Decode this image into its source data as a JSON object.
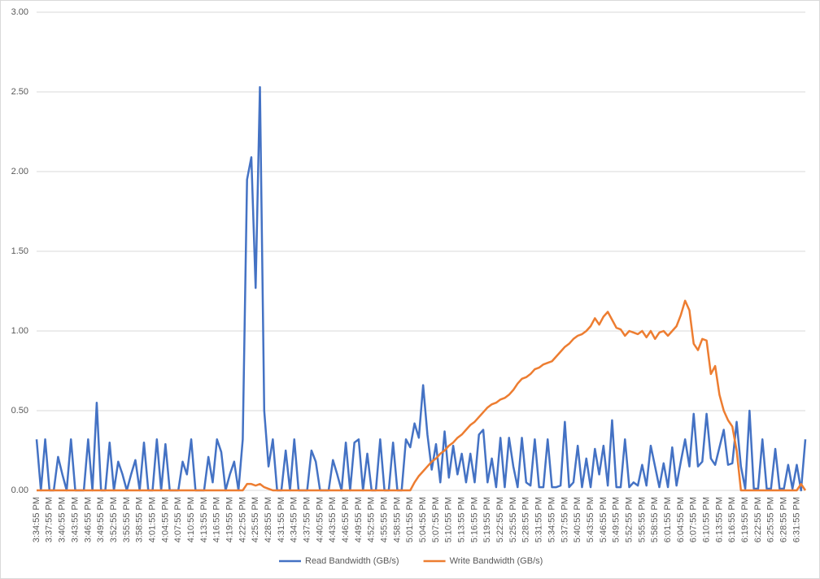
{
  "chart_data": {
    "type": "line",
    "categories": [
      "3:34:55 PM",
      null,
      null,
      "3:37:55 PM",
      null,
      null,
      "3:40:55 PM",
      null,
      null,
      "3:43:55 PM",
      null,
      null,
      "3:46:55 PM",
      null,
      null,
      "3:49:55 PM",
      null,
      null,
      "3:52:55 PM",
      null,
      null,
      "3:55:55 PM",
      null,
      null,
      "3:58:55 PM",
      null,
      null,
      "4:01:55 PM",
      null,
      null,
      "4:04:55 PM",
      null,
      null,
      "4:07:55 PM",
      null,
      null,
      "4:10:55 PM",
      null,
      null,
      "4:13:55 PM",
      null,
      null,
      "4:16:55 PM",
      null,
      null,
      "4:19:55 PM",
      null,
      null,
      "4:22:55 PM",
      null,
      null,
      "4:25:55 PM",
      null,
      null,
      "4:28:55 PM",
      null,
      null,
      "4:31:55 PM",
      null,
      null,
      "4:34:55 PM",
      null,
      null,
      "4:37:55 PM",
      null,
      null,
      "4:40:55 PM",
      null,
      null,
      "4:43:55 PM",
      null,
      null,
      "4:46:55 PM",
      null,
      null,
      "4:49:55 PM",
      null,
      null,
      "4:52:55 PM",
      null,
      null,
      "4:55:55 PM",
      null,
      null,
      "4:58:55 PM",
      null,
      null,
      "5:01:55 PM",
      null,
      null,
      "5:04:55 PM",
      null,
      null,
      "5:07:55 PM",
      null,
      null,
      "5:10:55 PM",
      null,
      null,
      "5:13:55 PM",
      null,
      null,
      "5:16:55 PM",
      null,
      null,
      "5:19:55 PM",
      null,
      null,
      "5:22:55 PM",
      null,
      null,
      "5:25:55 PM",
      null,
      null,
      "5:28:55 PM",
      null,
      null,
      "5:31:55 PM",
      null,
      null,
      "5:34:55 PM",
      null,
      null,
      "5:37:55 PM",
      null,
      null,
      "5:40:55 PM",
      null,
      null,
      "5:43:55 PM",
      null,
      null,
      "5:46:55 PM",
      null,
      null,
      "5:49:55 PM",
      null,
      null,
      "5:52:55 PM",
      null,
      null,
      "5:55:55 PM",
      null,
      null,
      "5:58:55 PM",
      null,
      null,
      "6:01:55 PM",
      null,
      null,
      "6:04:55 PM",
      null,
      null,
      "6:07:55 PM",
      null,
      null,
      "6:10:55 PM",
      null,
      null,
      "6:13:55 PM",
      null,
      null,
      "6:16:55 PM",
      null,
      null,
      "6:19:55 PM",
      null,
      null,
      "6:22:55 PM",
      null,
      null,
      "6:25:55 PM",
      null,
      null,
      "6:28:55 PM",
      null,
      null,
      "6:31:55 PM",
      null,
      null
    ],
    "series": [
      {
        "name": "Read Bandwidth (GB/s)",
        "color": "#4472c4",
        "values": [
          0.32,
          0,
          0.32,
          0,
          0,
          0.21,
          0.1,
          0,
          0.32,
          0,
          0,
          0,
          0.32,
          0,
          0.55,
          0,
          0,
          0.3,
          0,
          0.18,
          0.1,
          0,
          0.1,
          0.19,
          0,
          0.3,
          0,
          0,
          0.32,
          0,
          0.29,
          0,
          0,
          0,
          0.18,
          0.1,
          0.32,
          0,
          0,
          0,
          0.21,
          0.05,
          0.32,
          0.24,
          0,
          0.1,
          0.18,
          0,
          0.32,
          1.95,
          2.09,
          1.27,
          2.53,
          0.5,
          0.15,
          0.32,
          0,
          0,
          0.25,
          0,
          0.32,
          0,
          0,
          0,
          0.25,
          0.18,
          0,
          0,
          0,
          0.19,
          0.1,
          0,
          0.3,
          0,
          0.3,
          0.32,
          0,
          0.23,
          0,
          0,
          0.32,
          0,
          0,
          0.3,
          0,
          0,
          0.32,
          0.27,
          0.42,
          0.33,
          0.66,
          0.35,
          0.13,
          0.29,
          0.05,
          0.37,
          0.08,
          0.28,
          0.1,
          0.23,
          0.05,
          0.23,
          0.05,
          0.35,
          0.38,
          0.05,
          0.2,
          0.02,
          0.33,
          0.02,
          0.33,
          0.15,
          0.02,
          0.33,
          0.05,
          0.03,
          0.32,
          0.02,
          0.02,
          0.32,
          0.02,
          0.02,
          0.03,
          0.43,
          0.02,
          0.05,
          0.28,
          0.02,
          0.2,
          0.02,
          0.26,
          0.1,
          0.28,
          0.03,
          0.44,
          0.02,
          0.02,
          0.32,
          0.02,
          0.05,
          0.03,
          0.16,
          0.03,
          0.28,
          0.15,
          0.02,
          0.17,
          0.02,
          0.27,
          0.03,
          0.18,
          0.32,
          0.15,
          0.48,
          0.15,
          0.18,
          0.48,
          0.2,
          0.16,
          0.27,
          0.38,
          0.16,
          0.17,
          0.43,
          0.15,
          0.01,
          0.5,
          0.01,
          0.01,
          0.32,
          0.01,
          0.01,
          0.26,
          0.01,
          0.01,
          0.16,
          0.01,
          0.16,
          0,
          0.32
        ]
      },
      {
        "name": "Write Bandwidth (GB/s)",
        "color": "#ed7d31",
        "values": [
          0,
          0,
          0,
          0,
          0,
          0,
          0,
          0,
          0,
          0,
          0,
          0,
          0,
          0,
          0,
          0,
          0,
          0,
          0,
          0,
          0,
          0,
          0,
          0,
          0,
          0,
          0,
          0,
          0,
          0,
          0,
          0,
          0,
          0,
          0,
          0,
          0,
          0,
          0,
          0,
          0,
          0,
          0,
          0,
          0,
          0,
          0,
          0,
          0,
          0.04,
          0.04,
          0.03,
          0.04,
          0.02,
          0.01,
          0,
          0,
          0,
          0,
          0,
          0,
          0,
          0,
          0,
          0,
          0,
          0,
          0,
          0,
          0,
          0,
          0,
          0,
          0,
          0,
          0,
          0,
          0,
          0,
          0,
          0,
          0,
          0,
          0,
          0,
          0,
          0,
          0,
          0.05,
          0.09,
          0.12,
          0.15,
          0.18,
          0.2,
          0.23,
          0.25,
          0.28,
          0.3,
          0.33,
          0.35,
          0.38,
          0.41,
          0.43,
          0.46,
          0.49,
          0.52,
          0.54,
          0.55,
          0.57,
          0.58,
          0.6,
          0.63,
          0.67,
          0.7,
          0.71,
          0.73,
          0.76,
          0.77,
          0.79,
          0.8,
          0.81,
          0.84,
          0.87,
          0.9,
          0.92,
          0.95,
          0.97,
          0.98,
          1.0,
          1.03,
          1.08,
          1.04,
          1.09,
          1.12,
          1.07,
          1.02,
          1.01,
          0.97,
          1.0,
          0.99,
          0.98,
          1.0,
          0.96,
          1.0,
          0.95,
          0.99,
          1.0,
          0.97,
          1.0,
          1.03,
          1.1,
          1.19,
          1.13,
          0.92,
          0.88,
          0.95,
          0.94,
          0.73,
          0.78,
          0.6,
          0.5,
          0.44,
          0.4,
          0.25,
          0,
          0,
          0,
          0,
          0,
          0,
          0,
          0,
          0,
          0,
          0,
          0,
          0,
          0,
          0.04,
          0
        ]
      }
    ],
    "ylim": [
      0,
      3
    ],
    "yticks": [
      {
        "value": 0,
        "label": "0.00"
      },
      {
        "value": 0.5,
        "label": "0.50"
      },
      {
        "value": 1,
        "label": "1.00"
      },
      {
        "value": 1.5,
        "label": "1.50"
      },
      {
        "value": 2,
        "label": "2.00"
      },
      {
        "value": 2.5,
        "label": "2.50"
      },
      {
        "value": 3,
        "label": "3.00"
      }
    ],
    "grid": true,
    "legend": "bottom"
  }
}
